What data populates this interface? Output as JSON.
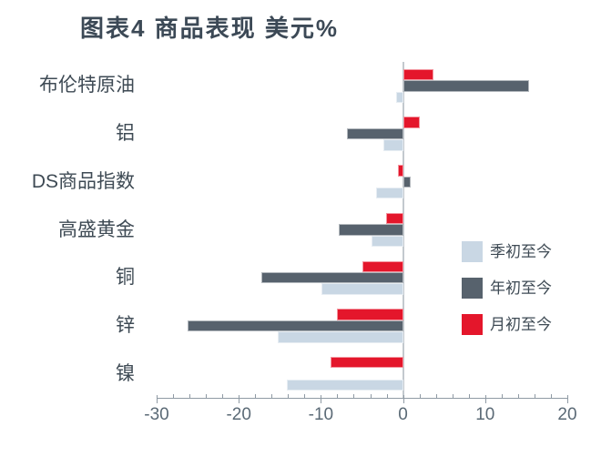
{
  "title": "图表4 商品表现 美元%",
  "chart_data": {
    "type": "bar",
    "orientation": "horizontal",
    "title": "图表4 商品表现 美元%",
    "unit": "%",
    "categories": [
      "布伦特原油",
      "铝",
      "DS商品指数",
      "高盛黄金",
      "铜",
      "锌",
      "镍"
    ],
    "series": [
      {
        "name": "季初至今",
        "color": "#c9d7e4",
        "values": [
          -0.8,
          -2.4,
          -3.3,
          -3.8,
          -9.9,
          -15.3,
          -14.2
        ]
      },
      {
        "name": "年初至今",
        "color": "#57626d",
        "values": [
          15.3,
          -6.8,
          0.9,
          -7.8,
          -17.3,
          -26.2,
          0
        ]
      },
      {
        "name": "月初至今",
        "color": "#e4162b",
        "values": [
          3.7,
          2.0,
          -0.6,
          -2.1,
          -4.9,
          -8.0,
          -8.8
        ]
      }
    ],
    "bar_order_top_to_bottom": [
      "月初至今",
      "年初至今",
      "季初至今"
    ],
    "xlim": [
      -30,
      20
    ],
    "x_ticks": [
      -30,
      -20,
      -10,
      0,
      10,
      20
    ],
    "minor_tick_step": 2,
    "grid": false,
    "legend_position": "right-middle"
  },
  "colors": {
    "title_text": "#3c4956",
    "category_text": "#3e4a54",
    "tick_text": "#5b6a76",
    "axis_line": "#8f9aa4",
    "zero_line": "#c3c9ce",
    "background": "#ffffff"
  }
}
